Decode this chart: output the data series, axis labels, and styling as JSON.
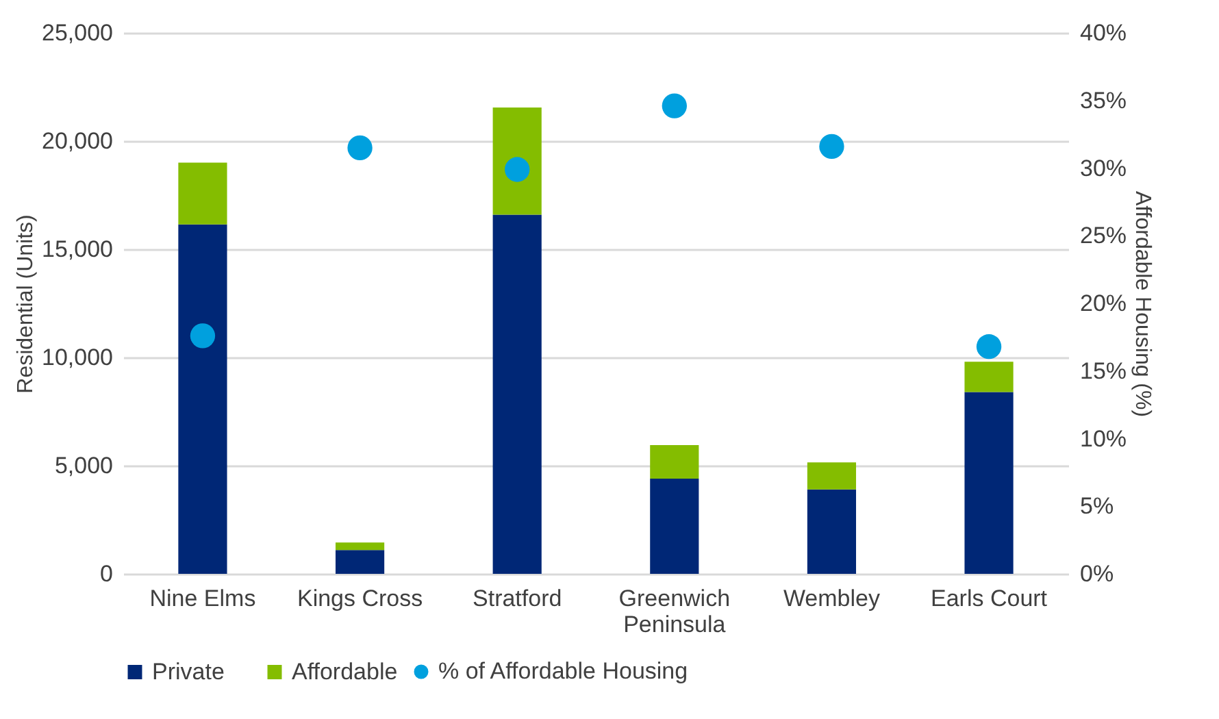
{
  "chart_data": {
    "type": "bar",
    "stacked": true,
    "categories": [
      "Nine Elms",
      "Kings Cross",
      "Stratford",
      "Greenwich Peninsula",
      "Wembley",
      "Earls Court"
    ],
    "series": [
      {
        "name": "Private",
        "color": "#002776",
        "values": [
          16150,
          1100,
          16600,
          4400,
          3900,
          8400
        ]
      },
      {
        "name": "Affordable",
        "color": "#84bd00",
        "values": [
          2850,
          350,
          4950,
          1550,
          1250,
          1400
        ]
      },
      {
        "name": "% of Affordable Housing",
        "type": "scatter",
        "axis": "y2",
        "color": "#00a0de",
        "values": [
          17.6,
          31.5,
          29.9,
          34.6,
          31.6,
          16.8
        ]
      }
    ],
    "ylabel": "Residential (Units)",
    "y2label": "Affordable Housing (%)",
    "ylim": [
      0,
      25000
    ],
    "yticks": [
      {
        "value": 0,
        "label": "0"
      },
      {
        "value": 5000,
        "label": "5,000"
      },
      {
        "value": 10000,
        "label": "10,000"
      },
      {
        "value": 15000,
        "label": "15,000"
      },
      {
        "value": 20000,
        "label": "20,000"
      },
      {
        "value": 25000,
        "label": "25,000"
      }
    ],
    "y2lim": [
      0,
      40
    ],
    "y2ticks": [
      {
        "value": 0,
        "label": "0%"
      },
      {
        "value": 5,
        "label": "5%"
      },
      {
        "value": 10,
        "label": "10%"
      },
      {
        "value": 15,
        "label": "15%"
      },
      {
        "value": 20,
        "label": "20%"
      },
      {
        "value": 25,
        "label": "25%"
      },
      {
        "value": 30,
        "label": "30%"
      },
      {
        "value": 35,
        "label": "35%"
      },
      {
        "value": 40,
        "label": "40%"
      }
    ],
    "grid": "y",
    "legend": "bottom",
    "marker": "circle"
  }
}
